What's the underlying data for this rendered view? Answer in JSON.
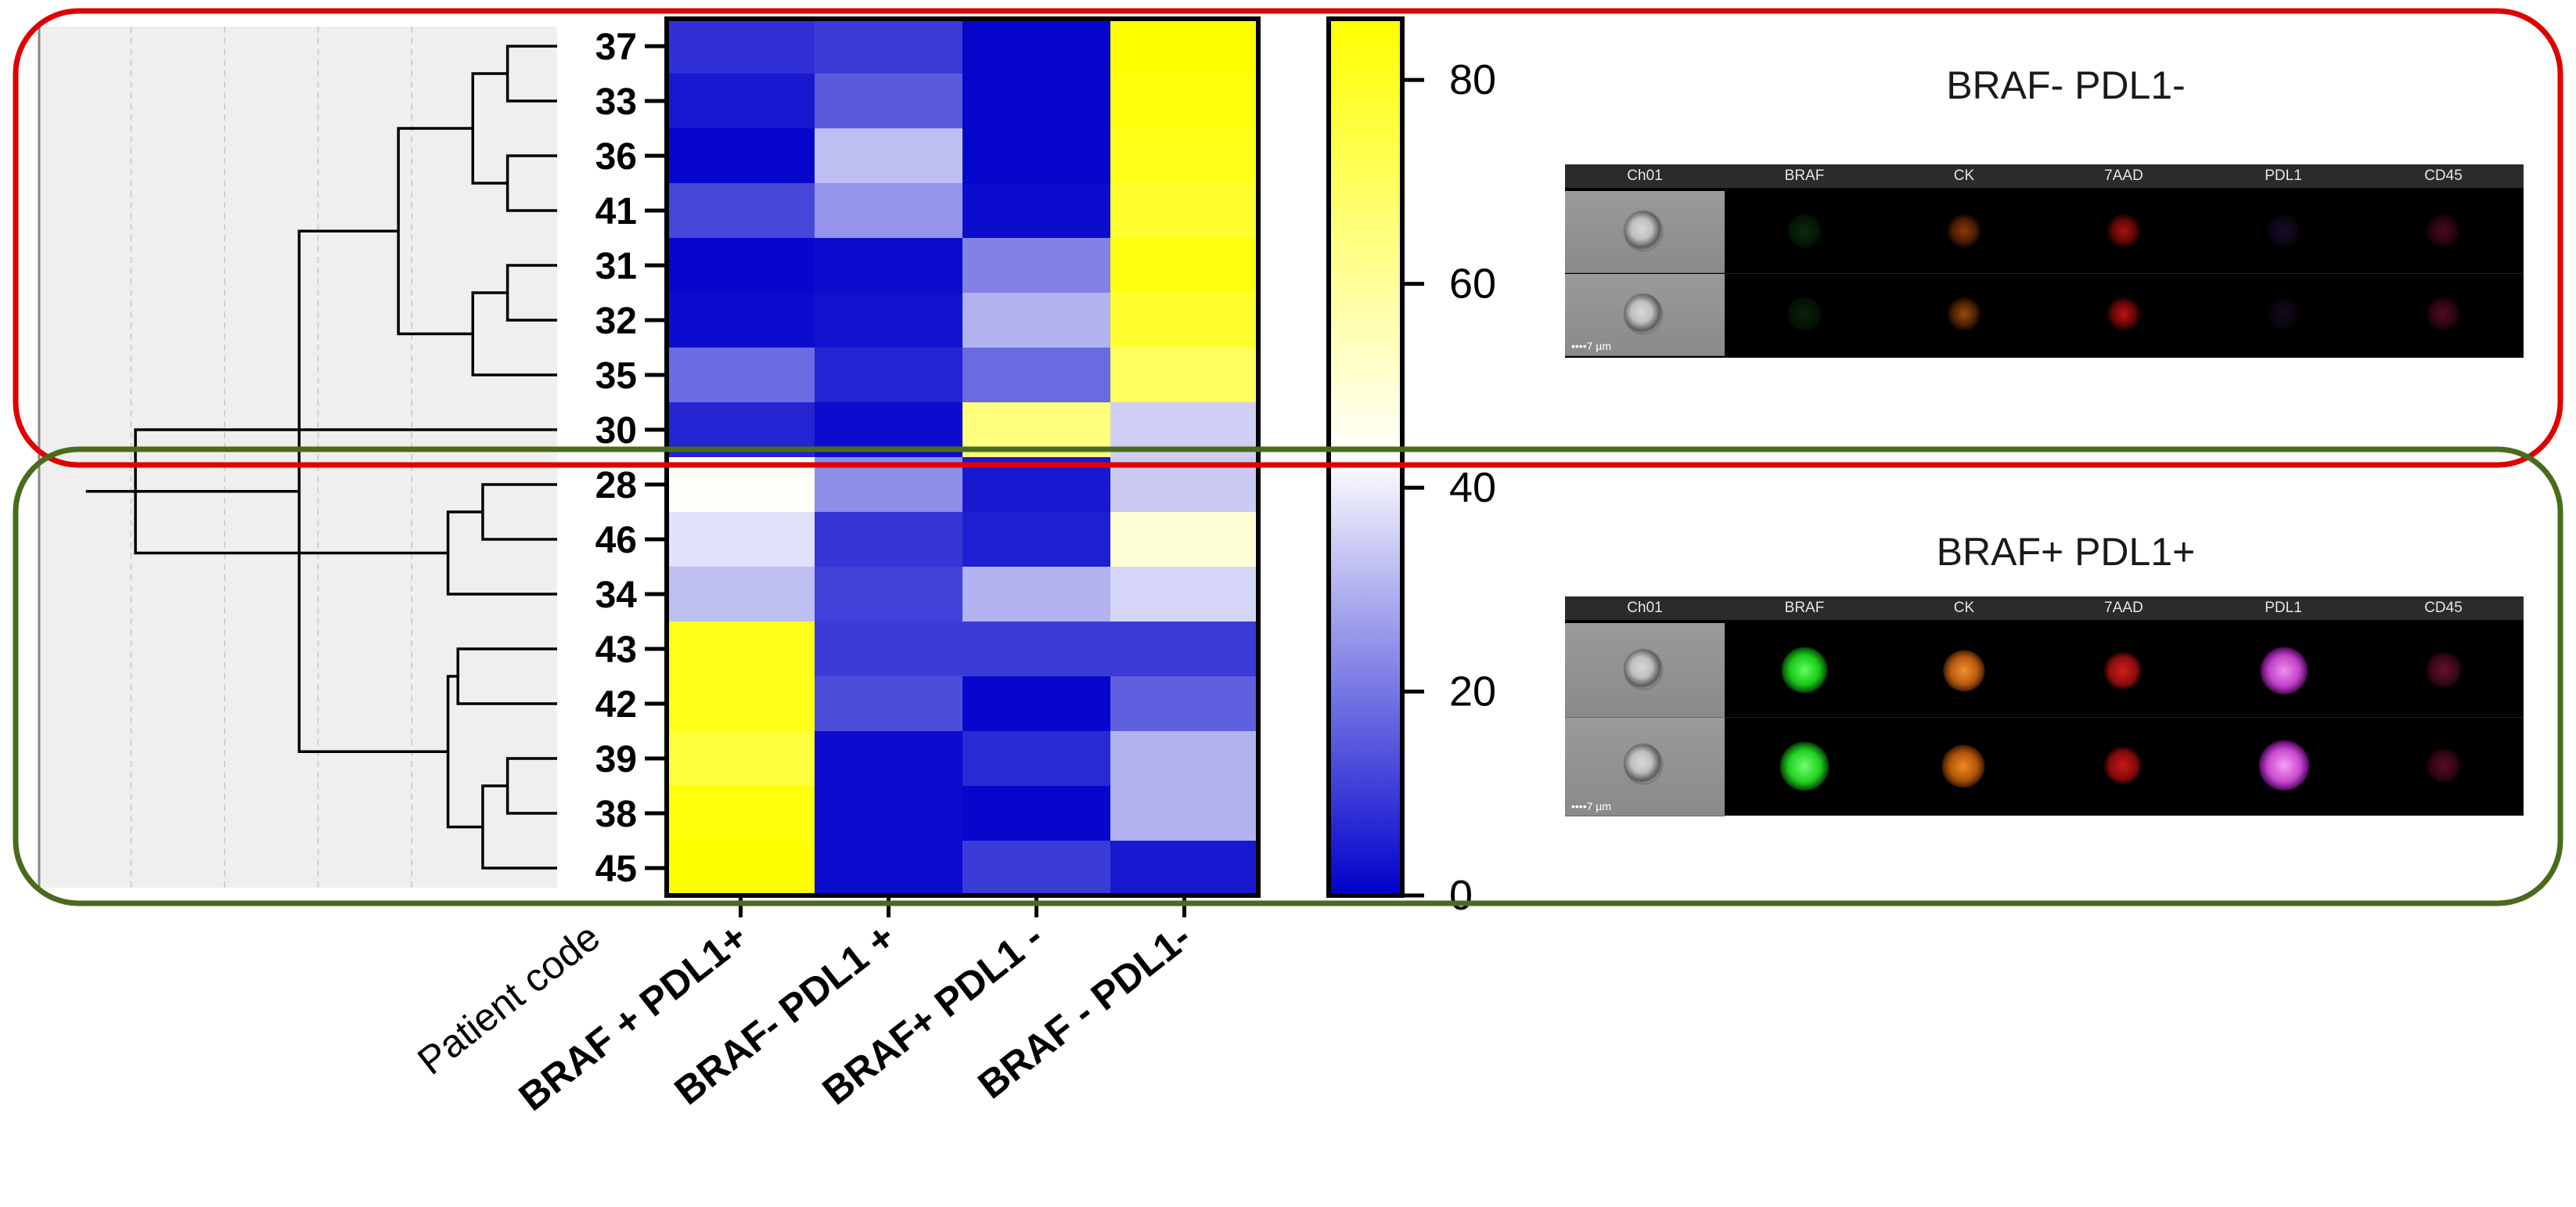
{
  "chart_data": {
    "type": "heatmap",
    "title": "",
    "xlabel": "",
    "ylabel": "Patient code",
    "rows": [
      "37",
      "33",
      "36",
      "41",
      "31",
      "32",
      "35",
      "30",
      "28",
      "46",
      "34",
      "43",
      "42",
      "39",
      "38",
      "45"
    ],
    "columns": [
      "BRAF + PDL1+",
      "BRAF- PDL1 +",
      "BRAF+ PDL1 -",
      "BRAF - PDL1-"
    ],
    "values": [
      [
        8,
        10,
        1,
        88
      ],
      [
        4,
        15,
        1,
        84
      ],
      [
        1,
        32,
        1,
        82
      ],
      [
        12,
        25,
        2,
        78
      ],
      [
        1,
        2,
        22,
        83
      ],
      [
        2,
        3,
        30,
        78
      ],
      [
        18,
        6,
        18,
        70
      ],
      [
        6,
        2,
        65,
        35
      ],
      [
        44,
        24,
        4,
        34
      ],
      [
        38,
        9,
        5,
        50
      ],
      [
        32,
        11,
        30,
        36
      ],
      [
        82,
        10,
        10,
        10
      ],
      [
        82,
        13,
        1,
        16
      ],
      [
        76,
        2,
        7,
        30
      ],
      [
        84,
        2,
        1,
        30
      ],
      [
        87,
        2,
        10,
        4
      ]
    ],
    "colorbar": {
      "range": [
        0,
        86
      ],
      "ticks": [
        0,
        20,
        40,
        60,
        80
      ],
      "stops": [
        {
          "value": 0,
          "color": "#0000cc"
        },
        {
          "value": 43,
          "color": "#ffffff"
        },
        {
          "value": 86,
          "color": "#ffff00"
        }
      ]
    },
    "dendrogram": {
      "order": [
        "37",
        "33",
        "36",
        "41",
        "31",
        "32",
        "35",
        "30",
        "28",
        "46",
        "34",
        "43",
        "42",
        "39",
        "38",
        "45"
      ],
      "merges": [
        {
          "a": "37",
          "b": "33",
          "height": 0.1
        },
        {
          "a": "36",
          "b": "41",
          "height": 0.1
        },
        {
          "a": "31",
          "b": "32",
          "height": 0.1
        },
        {
          "a": "39",
          "b": "38",
          "height": 0.1
        },
        {
          "a": "28",
          "b": "46",
          "height": 0.15
        },
        {
          "a": "43",
          "b": "42",
          "height": 0.2
        },
        {
          "a": "C1",
          "b": "C2",
          "height": 0.17
        },
        {
          "a": "C3",
          "b": "35",
          "height": 0.17
        },
        {
          "a": "C4",
          "b": "45",
          "height": 0.15
        },
        {
          "a": "C5",
          "b": "34",
          "height": 0.22
        },
        {
          "a": "C6",
          "b": "C9",
          "height": 0.22
        },
        {
          "a": "C7",
          "b": "C8",
          "height": 0.32
        },
        {
          "a": "C10",
          "b": "30",
          "height": 0.85
        },
        {
          "a": "C11",
          "b": "C12",
          "height": 0.52
        },
        {
          "a": "C13",
          "b": "C14",
          "height": 0.95
        }
      ]
    },
    "groups": [
      {
        "name": "BRAF- PDL1-",
        "rows_from": "37",
        "rows_to": "30",
        "color": "#e00000"
      },
      {
        "name": "BRAF+ PDL1+",
        "rows_from": "28",
        "rows_to": "45",
        "color": "#4a6b1e"
      }
    ]
  },
  "panels": {
    "top": {
      "title": "BRAF- PDL1-",
      "channels": [
        "Ch01",
        "BRAF",
        "CK",
        "7AAD",
        "PDL1",
        "CD45"
      ],
      "scale_label": "••••7 µm"
    },
    "bottom": {
      "title": "BRAF+ PDL1+",
      "channels": [
        "Ch01",
        "BRAF",
        "CK",
        "7AAD",
        "PDL1",
        "CD45"
      ],
      "scale_label": "••••7 µm"
    }
  }
}
